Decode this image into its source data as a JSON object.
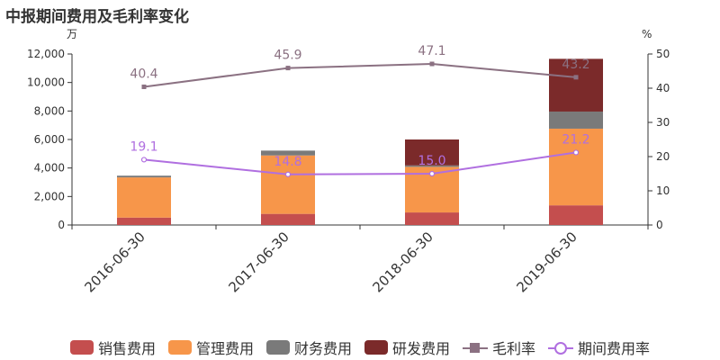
{
  "chart_data": {
    "type": "bar",
    "title": "中报期间费用及毛利率变化",
    "categories": [
      "2016-06-30",
      "2017-06-30",
      "2018-06-30",
      "2019-06-30"
    ],
    "y_left": {
      "unit": "万",
      "ticks": [
        "0",
        "2,000",
        "4,000",
        "6,000",
        "8,000",
        "10,000",
        "12,000"
      ],
      "range": [
        0,
        12000
      ]
    },
    "y_right": {
      "unit": "%",
      "ticks": [
        "0",
        "10",
        "20",
        "30",
        "40",
        "50"
      ],
      "range": [
        0,
        50
      ]
    },
    "bar_series": [
      {
        "name": "销售费用",
        "color": "#c44e4e",
        "values": [
          520,
          780,
          880,
          1380
        ]
      },
      {
        "name": "管理费用",
        "color": "#f7964a",
        "values": [
          2820,
          4100,
          3200,
          5380
        ]
      },
      {
        "name": "财务费用",
        "color": "#7a7a7a",
        "values": [
          120,
          340,
          100,
          1200
        ]
      },
      {
        "name": "研发费用",
        "color": "#7b2a2a",
        "values": [
          0,
          0,
          1820,
          3700
        ]
      }
    ],
    "line_series": [
      {
        "name": "毛利率",
        "color": "#8b7182",
        "marker": "square",
        "values": [
          40.4,
          45.9,
          47.1,
          43.2
        ],
        "labels": [
          "40.4",
          "45.9",
          "47.1",
          "43.2"
        ]
      },
      {
        "name": "期间费用率",
        "color": "#b06fe0",
        "marker": "circle",
        "values": [
          19.1,
          14.8,
          15.0,
          21.2
        ],
        "labels": [
          "19.1",
          "14.8",
          "15.0",
          "21.2"
        ]
      }
    ],
    "legend_position": "bottom",
    "grid": false
  }
}
